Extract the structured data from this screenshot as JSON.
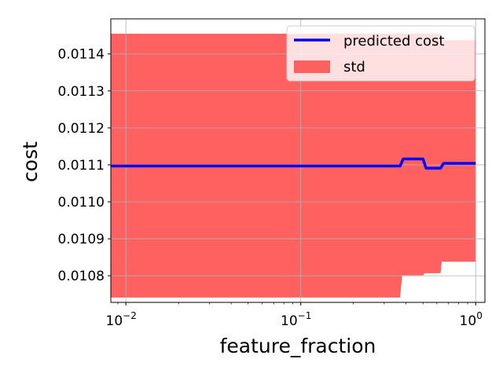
{
  "chart_data": {
    "type": "line",
    "xlabel": "feature_fraction",
    "ylabel": "cost",
    "xscale": "log",
    "xlim": [
      0.0082,
      1.13
    ],
    "ylim": [
      0.010728,
      0.011495
    ],
    "grid": true,
    "legend_placement": "top-right",
    "x_ticks": [
      {
        "value": 0.01,
        "base": "10",
        "exp": "−2"
      },
      {
        "value": 0.1,
        "base": "10",
        "exp": "−1"
      },
      {
        "value": 1,
        "base": "10",
        "exp": "0"
      }
    ],
    "y_ticks": [
      {
        "value": 0.0108,
        "label": "0.0108"
      },
      {
        "value": 0.0109,
        "label": "0.0109"
      },
      {
        "value": 0.011,
        "label": "0.0110"
      },
      {
        "value": 0.0111,
        "label": "0.0111"
      },
      {
        "value": 0.0112,
        "label": "0.0112"
      },
      {
        "value": 0.0113,
        "label": "0.0113"
      },
      {
        "value": 0.0114,
        "label": "0.0114"
      }
    ],
    "series": [
      {
        "name": "predicted cost",
        "kind": "line",
        "color": "#0000ff",
        "x": [
          0.0082,
          0.37,
          0.385,
          0.5,
          0.52,
          0.63,
          0.655,
          1.0
        ],
        "y": [
          0.011097,
          0.011097,
          0.011116,
          0.011116,
          0.011091,
          0.011091,
          0.011104,
          0.011104
        ]
      },
      {
        "name": "std",
        "kind": "band",
        "color": "#ff6161",
        "x": [
          0.0082,
          0.37,
          0.38,
          0.5,
          0.51,
          0.63,
          0.64,
          1.0
        ],
        "upper": [
          0.011455,
          0.011455,
          0.011455,
          0.011455,
          0.011455,
          0.011455,
          0.011437,
          0.011437
        ],
        "lower": [
          0.010741,
          0.010741,
          0.010801,
          0.010801,
          0.010807,
          0.010807,
          0.010838,
          0.010838
        ]
      }
    ]
  },
  "legend": {
    "line_label": "predicted cost",
    "band_label": "std"
  }
}
